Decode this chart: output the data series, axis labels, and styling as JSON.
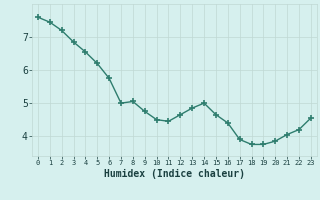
{
  "x": [
    0,
    1,
    2,
    3,
    4,
    5,
    6,
    7,
    8,
    9,
    10,
    11,
    12,
    13,
    14,
    15,
    16,
    17,
    18,
    19,
    20,
    21,
    22,
    23
  ],
  "y": [
    7.6,
    7.45,
    7.2,
    6.85,
    6.55,
    6.2,
    5.75,
    5.0,
    5.05,
    4.75,
    4.5,
    4.45,
    4.65,
    4.85,
    5.0,
    4.65,
    4.4,
    3.9,
    3.75,
    3.75,
    3.85,
    4.05,
    4.2,
    4.55
  ],
  "line_color": "#2e7d6e",
  "marker": "+",
  "marker_size": 4,
  "marker_linewidth": 1.2,
  "line_width": 1.0,
  "bg_color": "#d6f0ee",
  "grid_color": "#c0d8d4",
  "xlabel": "Humidex (Indice chaleur)",
  "ylabel_ticks": [
    4,
    5,
    6,
    7
  ],
  "xlim": [
    -0.5,
    23.5
  ],
  "ylim": [
    3.4,
    8.0
  ],
  "tick_label_color": "#1a4040",
  "xtick_fontsize": 5.0,
  "ytick_fontsize": 7.0,
  "xlabel_fontsize": 7.0
}
